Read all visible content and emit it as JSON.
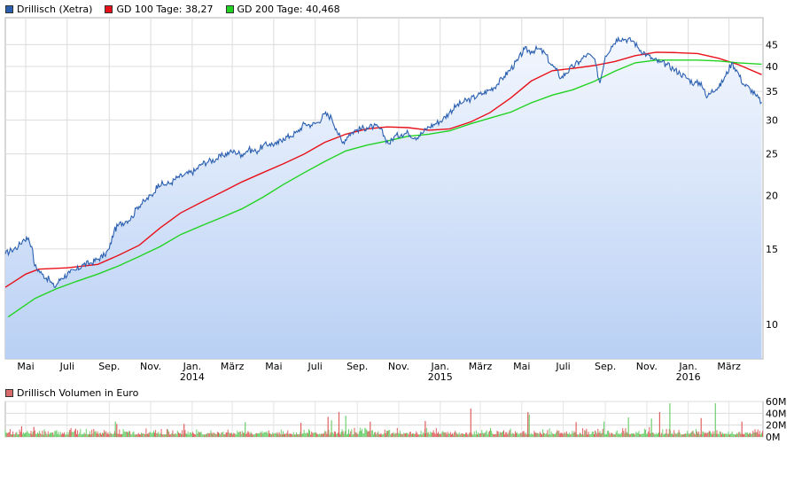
{
  "legend": {
    "price_label": "Drillisch (Xetra)",
    "gd100_label": "GD 100 Tage: 38,27",
    "gd200_label": "GD 200 Tage: 40,468",
    "volume_label": "Drillisch Volumen in Euro"
  },
  "colors": {
    "price": "#2a5fb0",
    "gd100": "#e8111a",
    "gd200": "#21d321",
    "area_top": "#f3f7fe",
    "area_bottom": "#b9d0f4",
    "vol_up": "#6fcf6f",
    "vol_down": "#e06060"
  },
  "chart_data": [
    {
      "type": "line",
      "title": "",
      "yscale": "log",
      "ylim": [
        8.3,
        52
      ],
      "yticks": [
        10,
        15,
        20,
        25,
        30,
        35,
        40,
        45
      ],
      "xlim": [
        "2013-04-01",
        "2016-04-20"
      ],
      "x_ticks": [
        {
          "date": "2013-05-01",
          "label": "Mai"
        },
        {
          "date": "2013-07-01",
          "label": "Juli"
        },
        {
          "date": "2013-09-01",
          "label": "Sep."
        },
        {
          "date": "2013-11-01",
          "label": "Nov."
        },
        {
          "date": "2014-01-01",
          "label": "Jan.",
          "year": "2014"
        },
        {
          "date": "2014-03-01",
          "label": "März"
        },
        {
          "date": "2014-05-01",
          "label": "Mai"
        },
        {
          "date": "2014-07-01",
          "label": "Juli"
        },
        {
          "date": "2014-09-01",
          "label": "Sep."
        },
        {
          "date": "2014-11-01",
          "label": "Nov."
        },
        {
          "date": "2015-01-01",
          "label": "Jan.",
          "year": "2015"
        },
        {
          "date": "2015-03-01",
          "label": "März"
        },
        {
          "date": "2015-05-01",
          "label": "Mai"
        },
        {
          "date": "2015-07-01",
          "label": "Juli"
        },
        {
          "date": "2015-09-01",
          "label": "Sep."
        },
        {
          "date": "2015-11-01",
          "label": "Nov."
        },
        {
          "date": "2016-01-01",
          "label": "Jan.",
          "year": "2016"
        },
        {
          "date": "2016-03-01",
          "label": "März"
        }
      ],
      "series": [
        {
          "name": "Drillisch (Xetra)",
          "points": [
            [
              "2013-04-01",
              14.6
            ],
            [
              "2013-04-10",
              14.9
            ],
            [
              "2013-04-20",
              15.2
            ],
            [
              "2013-04-28",
              15.8
            ],
            [
              "2013-05-05",
              15.9
            ],
            [
              "2013-05-10",
              15.2
            ],
            [
              "2013-05-14",
              13.7
            ],
            [
              "2013-05-25",
              13.1
            ],
            [
              "2013-06-05",
              12.7
            ],
            [
              "2013-06-12",
              12.2
            ],
            [
              "2013-06-22",
              12.8
            ],
            [
              "2013-07-05",
              13.2
            ],
            [
              "2013-07-15",
              13.4
            ],
            [
              "2013-07-25",
              13.8
            ],
            [
              "2013-08-05",
              13.9
            ],
            [
              "2013-08-15",
              14.2
            ],
            [
              "2013-08-25",
              14.5
            ],
            [
              "2013-09-01",
              15.0
            ],
            [
              "2013-09-08",
              16.5
            ],
            [
              "2013-09-15",
              17.1
            ],
            [
              "2013-09-25",
              17.4
            ],
            [
              "2013-10-05",
              17.8
            ],
            [
              "2013-10-12",
              18.8
            ],
            [
              "2013-10-25",
              19.5
            ],
            [
              "2013-11-05",
              20.2
            ],
            [
              "2013-11-12",
              21.3
            ],
            [
              "2013-11-22",
              21.2
            ],
            [
              "2013-12-01",
              21.4
            ],
            [
              "2013-12-10",
              22.0
            ],
            [
              "2013-12-20",
              22.3
            ],
            [
              "2014-01-05",
              22.8
            ],
            [
              "2014-01-15",
              23.7
            ],
            [
              "2014-01-25",
              24.0
            ],
            [
              "2014-02-05",
              24.3
            ],
            [
              "2014-02-15",
              24.8
            ],
            [
              "2014-02-25",
              25.2
            ],
            [
              "2014-03-05",
              25.3
            ],
            [
              "2014-03-15",
              24.9
            ],
            [
              "2014-03-25",
              25.6
            ],
            [
              "2014-04-05",
              25.3
            ],
            [
              "2014-04-15",
              26.1
            ],
            [
              "2014-04-25",
              26.4
            ],
            [
              "2014-05-05",
              26.3
            ],
            [
              "2014-05-15",
              27.2
            ],
            [
              "2014-05-25",
              27.5
            ],
            [
              "2014-06-05",
              28.1
            ],
            [
              "2014-06-15",
              29.4
            ],
            [
              "2014-06-25",
              29.2
            ],
            [
              "2014-07-05",
              29.6
            ],
            [
              "2014-07-15",
              31.0
            ],
            [
              "2014-07-25",
              30.4
            ],
            [
              "2014-08-01",
              28.6
            ],
            [
              "2014-08-10",
              26.5
            ],
            [
              "2014-08-20",
              27.8
            ],
            [
              "2014-09-01",
              28.5
            ],
            [
              "2014-09-15",
              28.8
            ],
            [
              "2014-09-25",
              29.0
            ],
            [
              "2014-10-05",
              28.6
            ],
            [
              "2014-10-12",
              27.2
            ],
            [
              "2014-10-18",
              26.4
            ],
            [
              "2014-10-25",
              27.4
            ],
            [
              "2014-11-05",
              27.8
            ],
            [
              "2014-11-15",
              28.0
            ],
            [
              "2014-11-25",
              27.3
            ],
            [
              "2014-12-05",
              27.9
            ],
            [
              "2014-12-15",
              28.9
            ],
            [
              "2014-12-25",
              29.4
            ],
            [
              "2015-01-05",
              30.1
            ],
            [
              "2015-01-15",
              31.3
            ],
            [
              "2015-01-25",
              32.4
            ],
            [
              "2015-02-05",
              33.1
            ],
            [
              "2015-02-15",
              33.6
            ],
            [
              "2015-02-25",
              34.2
            ],
            [
              "2015-03-05",
              34.6
            ],
            [
              "2015-03-15",
              35.3
            ],
            [
              "2015-03-25",
              36.2
            ],
            [
              "2015-04-05",
              37.9
            ],
            [
              "2015-04-15",
              39.5
            ],
            [
              "2015-04-25",
              41.3
            ],
            [
              "2015-05-05",
              43.9
            ],
            [
              "2015-05-15",
              43.4
            ],
            [
              "2015-05-25",
              44.0
            ],
            [
              "2015-06-05",
              42.8
            ],
            [
              "2015-06-12",
              40.6
            ],
            [
              "2015-06-20",
              39.4
            ],
            [
              "2015-06-28",
              37.6
            ],
            [
              "2015-07-05",
              38.6
            ],
            [
              "2015-07-15",
              40.0
            ],
            [
              "2015-07-25",
              41.1
            ],
            [
              "2015-08-05",
              42.7
            ],
            [
              "2015-08-15",
              41.8
            ],
            [
              "2015-08-24",
              36.6
            ],
            [
              "2015-09-01",
              42.3
            ],
            [
              "2015-09-10",
              44.6
            ],
            [
              "2015-09-20",
              46.7
            ],
            [
              "2015-10-01",
              46.3
            ],
            [
              "2015-10-12",
              45.9
            ],
            [
              "2015-10-20",
              44.1
            ],
            [
              "2015-11-01",
              42.6
            ],
            [
              "2015-11-10",
              41.6
            ],
            [
              "2015-11-20",
              40.9
            ],
            [
              "2015-12-01",
              40.4
            ],
            [
              "2015-12-10",
              39.5
            ],
            [
              "2015-12-20",
              38.6
            ],
            [
              "2016-01-01",
              37.4
            ],
            [
              "2016-01-10",
              36.5
            ],
            [
              "2016-01-20",
              36.7
            ],
            [
              "2016-01-28",
              33.8
            ],
            [
              "2016-02-05",
              35.3
            ],
            [
              "2016-02-15",
              35.7
            ],
            [
              "2016-02-25",
              38.0
            ],
            [
              "2016-03-05",
              40.8
            ],
            [
              "2016-03-12",
              39.3
            ],
            [
              "2016-03-22",
              36.4
            ],
            [
              "2016-04-01",
              35.5
            ],
            [
              "2016-04-10",
              34.1
            ],
            [
              "2016-04-18",
              33.0
            ]
          ]
        },
        {
          "name": "GD 100 Tage: 38,27",
          "points": [
            [
              "2013-04-01",
              12.2
            ],
            [
              "2013-05-01",
              13.1
            ],
            [
              "2013-05-20",
              13.45
            ],
            [
              "2013-07-01",
              13.55
            ],
            [
              "2013-08-15",
              13.8
            ],
            [
              "2013-09-15",
              14.5
            ],
            [
              "2013-10-15",
              15.3
            ],
            [
              "2013-11-15",
              16.8
            ],
            [
              "2013-12-15",
              18.2
            ],
            [
              "2014-01-15",
              19.3
            ],
            [
              "2014-02-15",
              20.4
            ],
            [
              "2014-03-15",
              21.5
            ],
            [
              "2014-04-15",
              22.6
            ],
            [
              "2014-05-15",
              23.7
            ],
            [
              "2014-06-15",
              25.0
            ],
            [
              "2014-07-15",
              26.6
            ],
            [
              "2014-08-15",
              27.8
            ],
            [
              "2014-09-15",
              28.6
            ],
            [
              "2014-10-15",
              28.9
            ],
            [
              "2014-11-15",
              28.8
            ],
            [
              "2014-12-15",
              28.4
            ],
            [
              "2015-01-15",
              28.6
            ],
            [
              "2015-02-15",
              29.7
            ],
            [
              "2015-03-15",
              31.2
            ],
            [
              "2015-04-15",
              33.8
            ],
            [
              "2015-05-15",
              37.0
            ],
            [
              "2015-06-15",
              39.1
            ],
            [
              "2015-07-15",
              39.6
            ],
            [
              "2015-08-15",
              40.2
            ],
            [
              "2015-09-15",
              41.1
            ],
            [
              "2015-10-15",
              42.4
            ],
            [
              "2015-11-15",
              43.2
            ],
            [
              "2015-12-15",
              43.1
            ],
            [
              "2016-01-15",
              42.9
            ],
            [
              "2016-02-15",
              41.8
            ],
            [
              "2016-03-15",
              40.4
            ],
            [
              "2016-04-18",
              38.3
            ]
          ]
        },
        {
          "name": "GD 200 Tage: 40,468",
          "points": [
            [
              "2013-04-05",
              10.4
            ],
            [
              "2013-05-15",
              11.5
            ],
            [
              "2013-06-15",
              12.1
            ],
            [
              "2013-07-15",
              12.6
            ],
            [
              "2013-08-15",
              13.1
            ],
            [
              "2013-09-15",
              13.7
            ],
            [
              "2013-10-15",
              14.4
            ],
            [
              "2013-11-15",
              15.2
            ],
            [
              "2013-12-15",
              16.2
            ],
            [
              "2014-01-15",
              17.0
            ],
            [
              "2014-02-15",
              17.8
            ],
            [
              "2014-03-15",
              18.6
            ],
            [
              "2014-04-15",
              19.8
            ],
            [
              "2014-05-15",
              21.2
            ],
            [
              "2014-06-15",
              22.6
            ],
            [
              "2014-07-15",
              24.0
            ],
            [
              "2014-08-15",
              25.4
            ],
            [
              "2014-09-15",
              26.2
            ],
            [
              "2014-10-15",
              26.8
            ],
            [
              "2014-11-15",
              27.5
            ],
            [
              "2014-12-15",
              27.8
            ],
            [
              "2015-01-15",
              28.3
            ],
            [
              "2015-02-15",
              29.4
            ],
            [
              "2015-03-15",
              30.3
            ],
            [
              "2015-04-15",
              31.3
            ],
            [
              "2015-05-15",
              32.9
            ],
            [
              "2015-06-15",
              34.3
            ],
            [
              "2015-07-15",
              35.3
            ],
            [
              "2015-08-15",
              36.9
            ],
            [
              "2015-09-15",
              39.0
            ],
            [
              "2015-10-15",
              40.8
            ],
            [
              "2015-11-15",
              41.4
            ],
            [
              "2015-12-15",
              41.4
            ],
            [
              "2016-01-15",
              41.4
            ],
            [
              "2016-02-15",
              41.2
            ],
            [
              "2016-03-15",
              40.8
            ],
            [
              "2016-04-18",
              40.5
            ]
          ]
        }
      ]
    },
    {
      "type": "bar",
      "title": "",
      "series_name": "Drillisch Volumen in Euro",
      "ylim": [
        0,
        60000000
      ],
      "yticks": [
        {
          "value": 0,
          "label": "0M"
        },
        {
          "value": 20000000,
          "label": "20M"
        },
        {
          "value": 40000000,
          "label": "40M"
        },
        {
          "value": 60000000,
          "label": "60M"
        }
      ],
      "typical_daily_volume": [
        4000000,
        12000000
      ],
      "spikes": [
        [
          "2013-04-25",
          18000000,
          "down"
        ],
        [
          "2013-05-13",
          17000000,
          "down"
        ],
        [
          "2013-07-05",
          12000000,
          "down"
        ],
        [
          "2013-09-10",
          26000000,
          "up"
        ],
        [
          "2013-09-12",
          22000000,
          "down"
        ],
        [
          "2013-12-20",
          22000000,
          "down"
        ],
        [
          "2014-03-20",
          25000000,
          "up"
        ],
        [
          "2014-06-10",
          24000000,
          "down"
        ],
        [
          "2014-07-20",
          34000000,
          "down"
        ],
        [
          "2014-07-25",
          28000000,
          "up"
        ],
        [
          "2014-08-05",
          42000000,
          "down"
        ],
        [
          "2014-08-15",
          36000000,
          "up"
        ],
        [
          "2014-09-20",
          26000000,
          "down"
        ],
        [
          "2014-12-10",
          27000000,
          "down"
        ],
        [
          "2015-02-15",
          48000000,
          "down"
        ],
        [
          "2015-05-10",
          42000000,
          "down"
        ],
        [
          "2015-05-12",
          38000000,
          "up"
        ],
        [
          "2015-07-20",
          25000000,
          "down"
        ],
        [
          "2015-08-30",
          26000000,
          "up"
        ],
        [
          "2015-10-05",
          33000000,
          "up"
        ],
        [
          "2015-11-08",
          31000000,
          "up"
        ],
        [
          "2015-11-20",
          42000000,
          "down"
        ],
        [
          "2015-12-05",
          57000000,
          "up"
        ],
        [
          "2016-01-20",
          32000000,
          "down"
        ],
        [
          "2016-02-10",
          57000000,
          "up"
        ],
        [
          "2016-03-20",
          26000000,
          "down"
        ]
      ]
    }
  ]
}
